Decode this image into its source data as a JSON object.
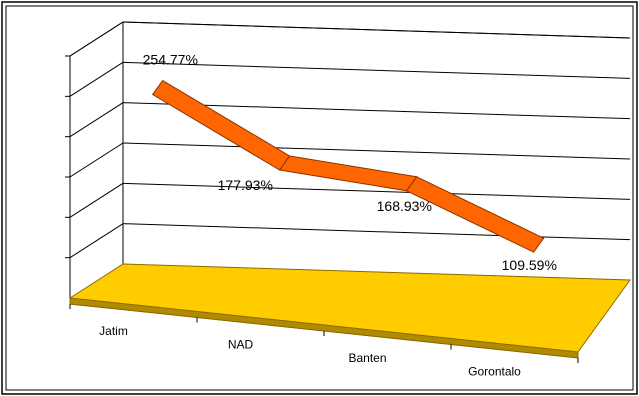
{
  "chart_data": {
    "type": "line",
    "categories": [
      "Jatim",
      "NAD",
      "Banten",
      "Gorontalo"
    ],
    "series": [
      {
        "values": [
          254.77,
          177.93,
          168.93,
          109.59
        ],
        "data_labels": [
          "254.77%",
          "177.93%",
          "168.93%",
          "109.59%"
        ]
      }
    ],
    "title": "",
    "xlabel": "",
    "ylabel": "",
    "ylim": [
      0,
      300
    ],
    "grid": true,
    "legend": "none",
    "three_d": true
  },
  "colors": {
    "line": "#FF6600",
    "line_edge": "#8a3300",
    "floor": "#FFCC00",
    "floor_edge": "#8a6a00",
    "gridline": "#000000",
    "frame": "#000000"
  }
}
